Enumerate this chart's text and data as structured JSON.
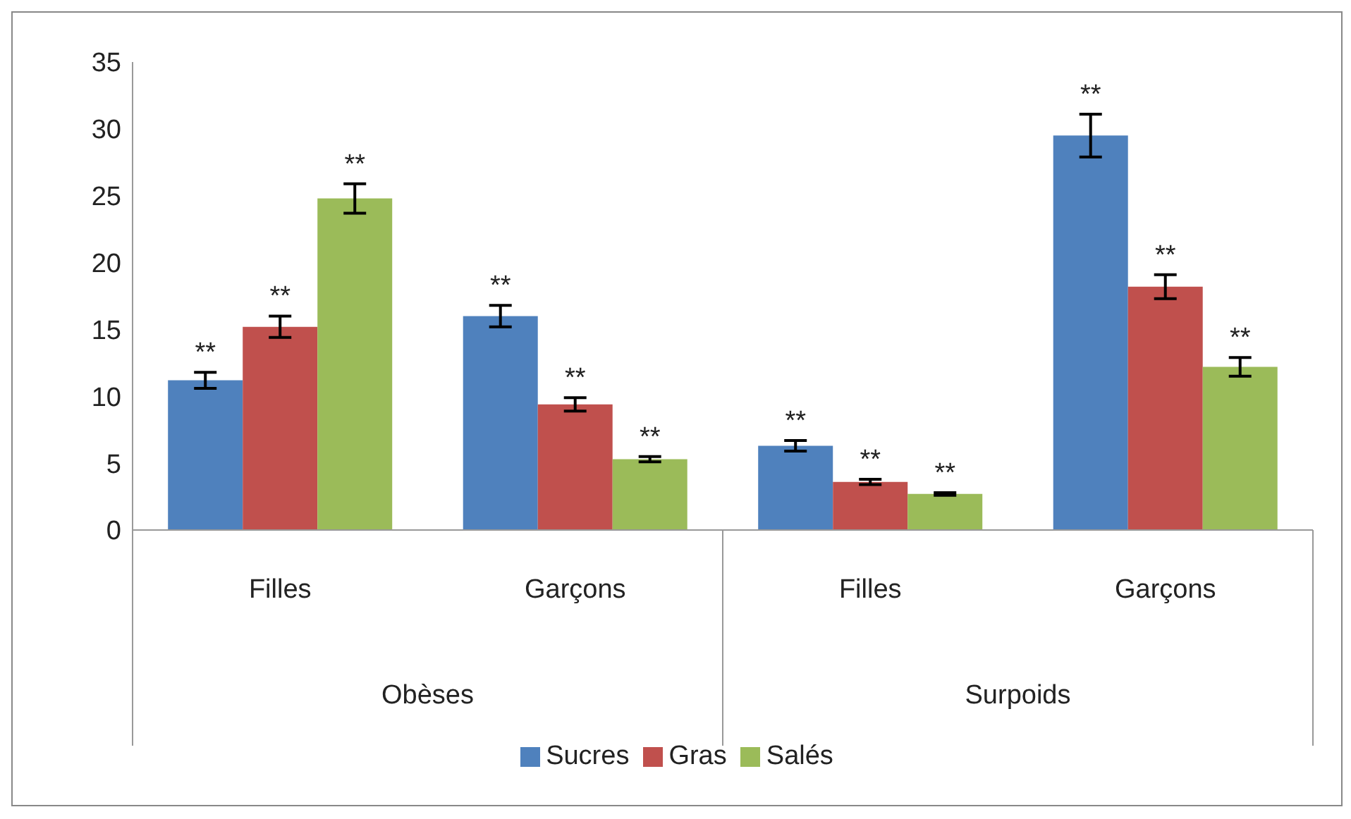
{
  "chart_data": {
    "type": "bar",
    "categories": [
      "Filles",
      "Garçons",
      "Filles",
      "Garçons"
    ],
    "annotations": [
      "Obèses",
      "Surpoids"
    ],
    "series": [
      {
        "name": "Sucres",
        "color": "#4f81bd",
        "values": [
          11.2,
          16.0,
          6.3,
          29.5
        ],
        "errors": [
          0.6,
          0.8,
          0.4,
          1.6
        ],
        "value_labels": [
          "**",
          "**",
          "**",
          "**"
        ]
      },
      {
        "name": "Gras",
        "color": "#c0504d",
        "values": [
          15.2,
          9.4,
          3.6,
          18.2
        ],
        "errors": [
          0.8,
          0.5,
          0.2,
          0.9
        ],
        "value_labels": [
          "**",
          "**",
          "**",
          "**"
        ]
      },
      {
        "name": "Salés",
        "color": "#9bbb59",
        "values": [
          24.8,
          5.3,
          2.7,
          12.2
        ],
        "errors": [
          1.1,
          0.2,
          0.1,
          0.7
        ],
        "value_labels": [
          "**",
          "**",
          "**",
          "**"
        ]
      }
    ],
    "ylim": [
      0,
      35
    ],
    "yticks": [
      0,
      5,
      10,
      15,
      20,
      25,
      30,
      35
    ],
    "grid": false,
    "legend": "bottom"
  }
}
